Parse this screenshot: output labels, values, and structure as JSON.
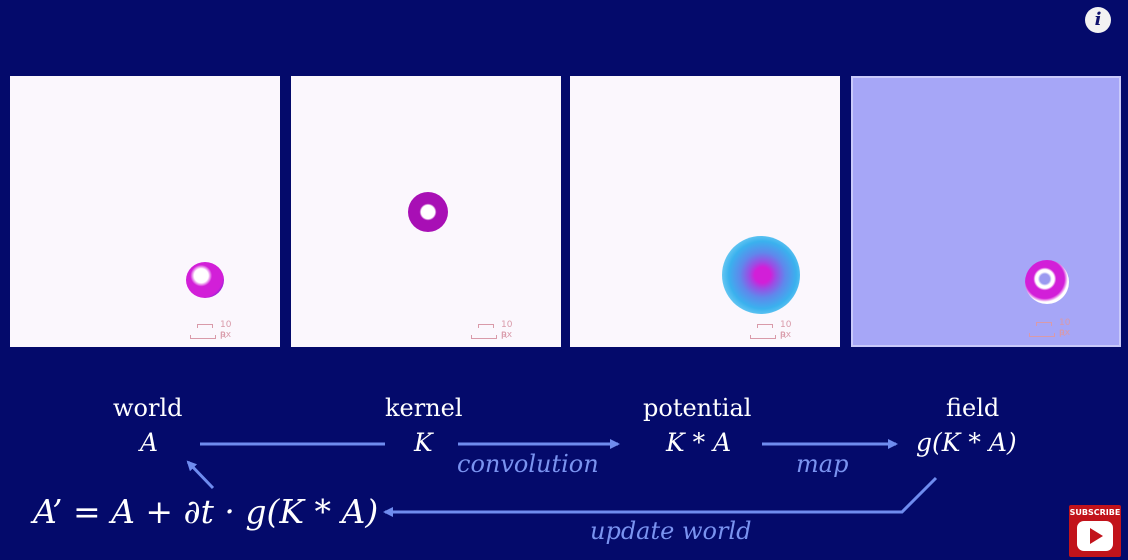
{
  "panels": [
    {
      "name": "world",
      "scale_top": "10 px",
      "scale_bottom": "R"
    },
    {
      "name": "kernel",
      "scale_top": "10 px",
      "scale_bottom": "R"
    },
    {
      "name": "potential",
      "scale_top": "10 px",
      "scale_bottom": "R"
    },
    {
      "name": "field",
      "scale_top": "10 px",
      "scale_bottom": "R"
    }
  ],
  "nodes": {
    "world": {
      "label": "world",
      "symbol": "A"
    },
    "kernel": {
      "label": "kernel",
      "symbol": "K"
    },
    "potential": {
      "label": "potential",
      "symbol": "K * A"
    },
    "field": {
      "label": "field",
      "symbol": "g(K * A)"
    }
  },
  "edges": {
    "convolution": "convolution",
    "map": "map",
    "update": "update world"
  },
  "equation": "A’ = A + ∂t · g(K * A)",
  "info_icon": "i",
  "subscribe": {
    "label": "SUBSCRIBE",
    "icon": "play-icon"
  },
  "colors": {
    "background": "#040a6b",
    "arrow": "#6f8cef",
    "field_panel": "#a6a6f7",
    "blob_magenta": "#d21fd8"
  }
}
